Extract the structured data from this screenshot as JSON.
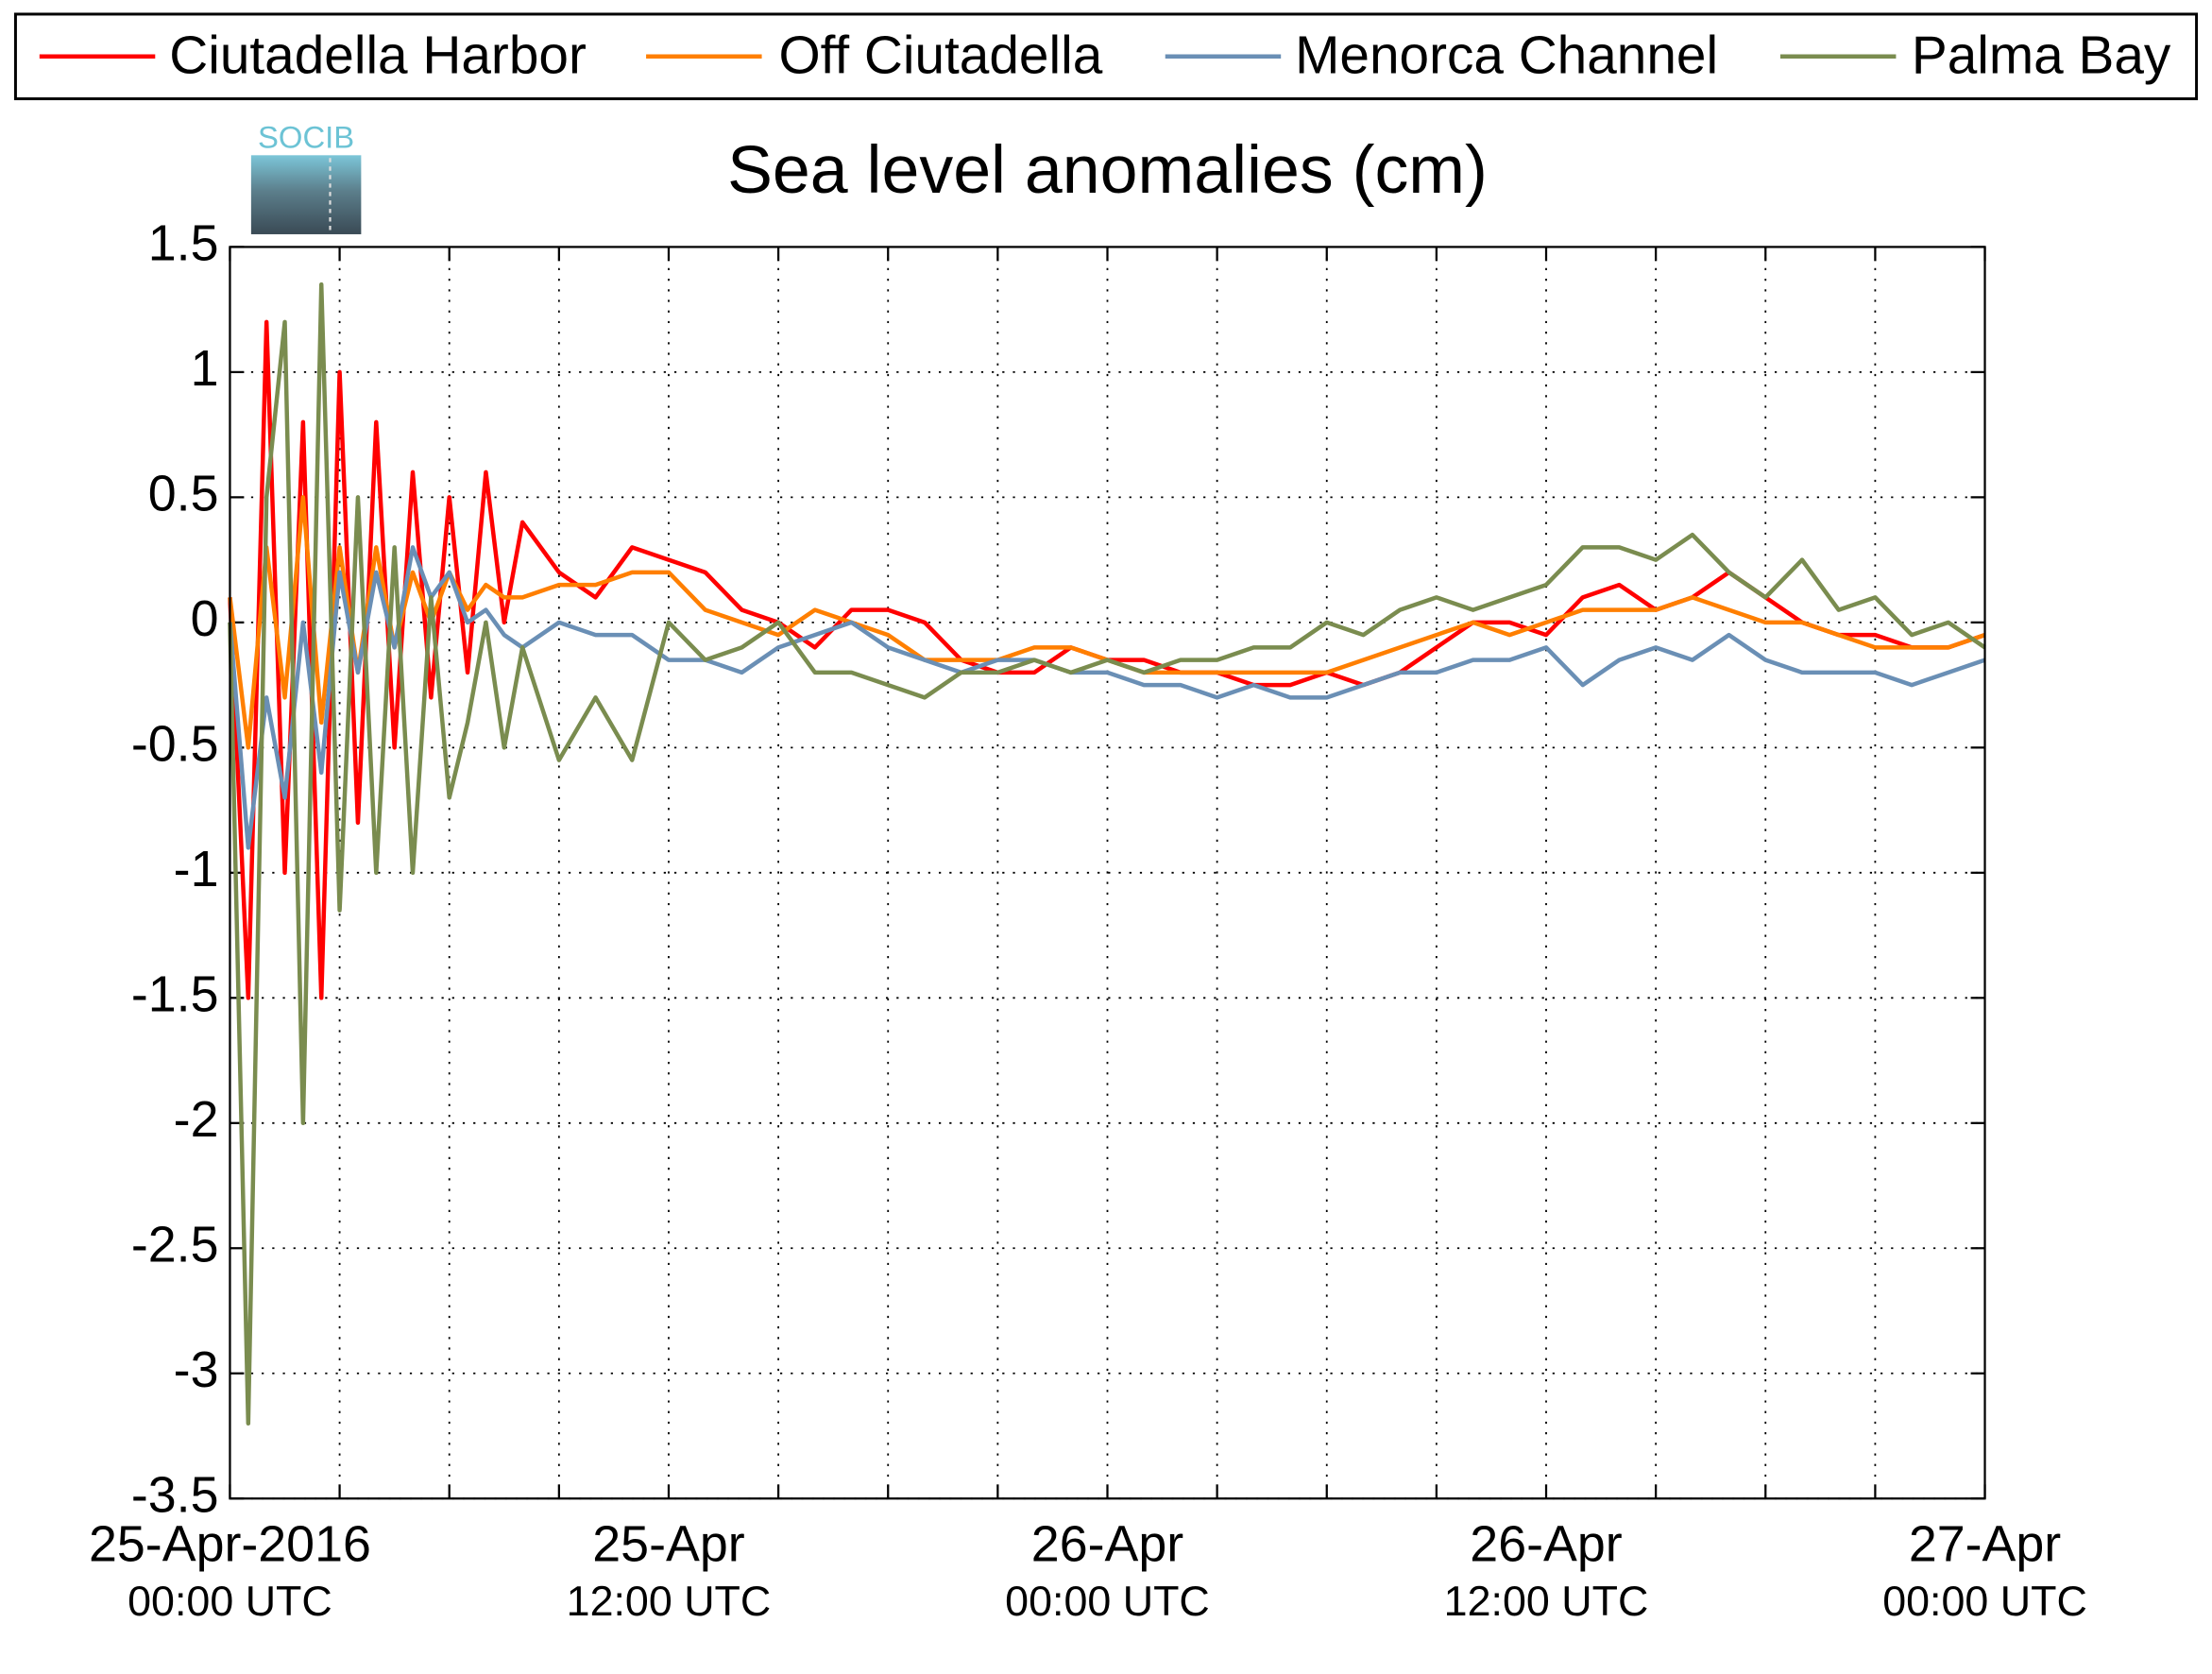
{
  "chart_data": {
    "type": "line",
    "logo": "SOCIB",
    "title": "Sea level anomalies (cm)",
    "legend": "top",
    "grid": true,
    "x": [
      "2016-04-25T00:00",
      "2016-04-25T00:30",
      "2016-04-25T01:00",
      "2016-04-25T01:30",
      "2016-04-25T02:00",
      "2016-04-25T02:30",
      "2016-04-25T03:00",
      "2016-04-25T03:30",
      "2016-04-25T04:00",
      "2016-04-25T04:30",
      "2016-04-25T05:00",
      "2016-04-25T05:30",
      "2016-04-25T06:00",
      "2016-04-25T06:30",
      "2016-04-25T07:00",
      "2016-04-25T07:30",
      "2016-04-25T08:00",
      "2016-04-25T09:00",
      "2016-04-25T10:00",
      "2016-04-25T11:00",
      "2016-04-25T12:00",
      "2016-04-25T13:00",
      "2016-04-25T14:00",
      "2016-04-25T15:00",
      "2016-04-25T16:00",
      "2016-04-25T17:00",
      "2016-04-25T18:00",
      "2016-04-25T19:00",
      "2016-04-25T20:00",
      "2016-04-25T21:00",
      "2016-04-25T22:00",
      "2016-04-25T23:00",
      "2016-04-26T00:00",
      "2016-04-26T01:00",
      "2016-04-26T02:00",
      "2016-04-26T03:00",
      "2016-04-26T04:00",
      "2016-04-26T05:00",
      "2016-04-26T06:00",
      "2016-04-26T07:00",
      "2016-04-26T08:00",
      "2016-04-26T09:00",
      "2016-04-26T10:00",
      "2016-04-26T11:00",
      "2016-04-26T12:00",
      "2016-04-26T13:00",
      "2016-04-26T14:00",
      "2016-04-26T15:00",
      "2016-04-26T16:00",
      "2016-04-26T17:00",
      "2016-04-26T18:00",
      "2016-04-26T19:00",
      "2016-04-26T20:00",
      "2016-04-26T21:00",
      "2016-04-26T22:00",
      "2016-04-26T23:00",
      "2016-04-27T00:00"
    ],
    "series": [
      {
        "name": "Ciutadella Harbor",
        "color": "#ff0000",
        "values": [
          0.1,
          -1.5,
          1.2,
          -1.0,
          0.8,
          -1.5,
          1.0,
          -0.8,
          0.8,
          -0.5,
          0.6,
          -0.3,
          0.5,
          -0.2,
          0.6,
          0.0,
          0.4,
          0.2,
          0.1,
          0.3,
          0.25,
          0.2,
          0.05,
          0.0,
          -0.1,
          0.05,
          0.05,
          0.0,
          -0.15,
          -0.2,
          -0.2,
          -0.1,
          -0.15,
          -0.15,
          -0.2,
          -0.2,
          -0.25,
          -0.25,
          -0.2,
          -0.25,
          -0.2,
          -0.1,
          0.0,
          0.0,
          -0.05,
          0.1,
          0.15,
          0.05,
          0.1,
          0.2,
          0.1,
          0.0,
          -0.05,
          -0.05,
          -0.1,
          -0.1,
          -0.05
        ]
      },
      {
        "name": "Off Ciutadella",
        "color": "#ff7f00",
        "values": [
          0.1,
          -0.5,
          0.3,
          -0.3,
          0.5,
          -0.4,
          0.3,
          -0.2,
          0.3,
          -0.1,
          0.2,
          0.0,
          0.2,
          0.05,
          0.15,
          0.1,
          0.1,
          0.15,
          0.15,
          0.2,
          0.2,
          0.05,
          0.0,
          -0.05,
          0.05,
          0.0,
          -0.05,
          -0.15,
          -0.15,
          -0.15,
          -0.1,
          -0.1,
          -0.15,
          -0.2,
          -0.2,
          -0.2,
          -0.2,
          -0.2,
          -0.2,
          -0.15,
          -0.1,
          -0.05,
          0.0,
          -0.05,
          0.0,
          0.05,
          0.05,
          0.05,
          0.1,
          0.05,
          0.0,
          0.0,
          -0.05,
          -0.1,
          -0.1,
          -0.1,
          -0.05
        ]
      },
      {
        "name": "Menorca Channel",
        "color": "#6a8fb5",
        "values": [
          0.0,
          -0.9,
          -0.3,
          -0.7,
          0.0,
          -0.6,
          0.2,
          -0.2,
          0.2,
          -0.1,
          0.3,
          0.1,
          0.2,
          0.0,
          0.05,
          -0.05,
          -0.1,
          0.0,
          -0.05,
          -0.05,
          -0.15,
          -0.15,
          -0.2,
          -0.1,
          -0.05,
          0.0,
          -0.1,
          -0.15,
          -0.2,
          -0.15,
          -0.15,
          -0.2,
          -0.2,
          -0.25,
          -0.25,
          -0.3,
          -0.25,
          -0.3,
          -0.3,
          -0.25,
          -0.2,
          -0.2,
          -0.15,
          -0.15,
          -0.1,
          -0.25,
          -0.15,
          -0.1,
          -0.15,
          -0.05,
          -0.15,
          -0.2,
          -0.2,
          -0.2,
          -0.25,
          -0.2,
          -0.15
        ]
      },
      {
        "name": "Palma Bay",
        "color": "#7a8c4f",
        "values": [
          0.0,
          -3.2,
          0.5,
          1.2,
          -2.0,
          1.35,
          -1.15,
          0.5,
          -1.0,
          0.3,
          -1.0,
          0.1,
          -0.7,
          -0.4,
          0.0,
          -0.5,
          -0.1,
          -0.55,
          -0.3,
          -0.55,
          0.0,
          -0.15,
          -0.1,
          0.0,
          -0.2,
          -0.2,
          -0.25,
          -0.3,
          -0.2,
          -0.2,
          -0.15,
          -0.2,
          -0.15,
          -0.2,
          -0.15,
          -0.15,
          -0.1,
          -0.1,
          0.0,
          -0.05,
          0.05,
          0.1,
          0.05,
          0.1,
          0.15,
          0.3,
          0.3,
          0.25,
          0.35,
          0.2,
          0.1,
          0.25,
          0.05,
          0.1,
          -0.05,
          0.0,
          -0.1
        ]
      }
    ],
    "xlim": [
      "2016-04-25T00:00",
      "2016-04-27T00:00"
    ],
    "xticks": [
      {
        "value": "2016-04-25T00:00",
        "label": [
          "25-Apr-2016",
          "00:00 UTC"
        ]
      },
      {
        "value": "2016-04-25T03:00",
        "label": null
      },
      {
        "value": "2016-04-25T06:00",
        "label": null
      },
      {
        "value": "2016-04-25T09:00",
        "label": null
      },
      {
        "value": "2016-04-25T12:00",
        "label": [
          "25-Apr",
          "12:00 UTC"
        ]
      },
      {
        "value": "2016-04-25T15:00",
        "label": null
      },
      {
        "value": "2016-04-25T18:00",
        "label": null
      },
      {
        "value": "2016-04-25T21:00",
        "label": null
      },
      {
        "value": "2016-04-26T00:00",
        "label": [
          "26-Apr",
          "00:00 UTC"
        ]
      },
      {
        "value": "2016-04-26T03:00",
        "label": null
      },
      {
        "value": "2016-04-26T06:00",
        "label": null
      },
      {
        "value": "2016-04-26T09:00",
        "label": null
      },
      {
        "value": "2016-04-26T12:00",
        "label": [
          "26-Apr",
          "12:00 UTC"
        ]
      },
      {
        "value": "2016-04-26T15:00",
        "label": null
      },
      {
        "value": "2016-04-26T18:00",
        "label": null
      },
      {
        "value": "2016-04-26T21:00",
        "label": null
      },
      {
        "value": "2016-04-27T00:00",
        "label": [
          "27-Apr",
          "00:00 UTC"
        ]
      }
    ],
    "ylim": [
      -3.5,
      1.5
    ],
    "yticks": [
      1.5,
      1,
      0.5,
      0,
      -0.5,
      -1,
      -1.5,
      -2,
      -2.5,
      -3,
      -3.5
    ]
  }
}
